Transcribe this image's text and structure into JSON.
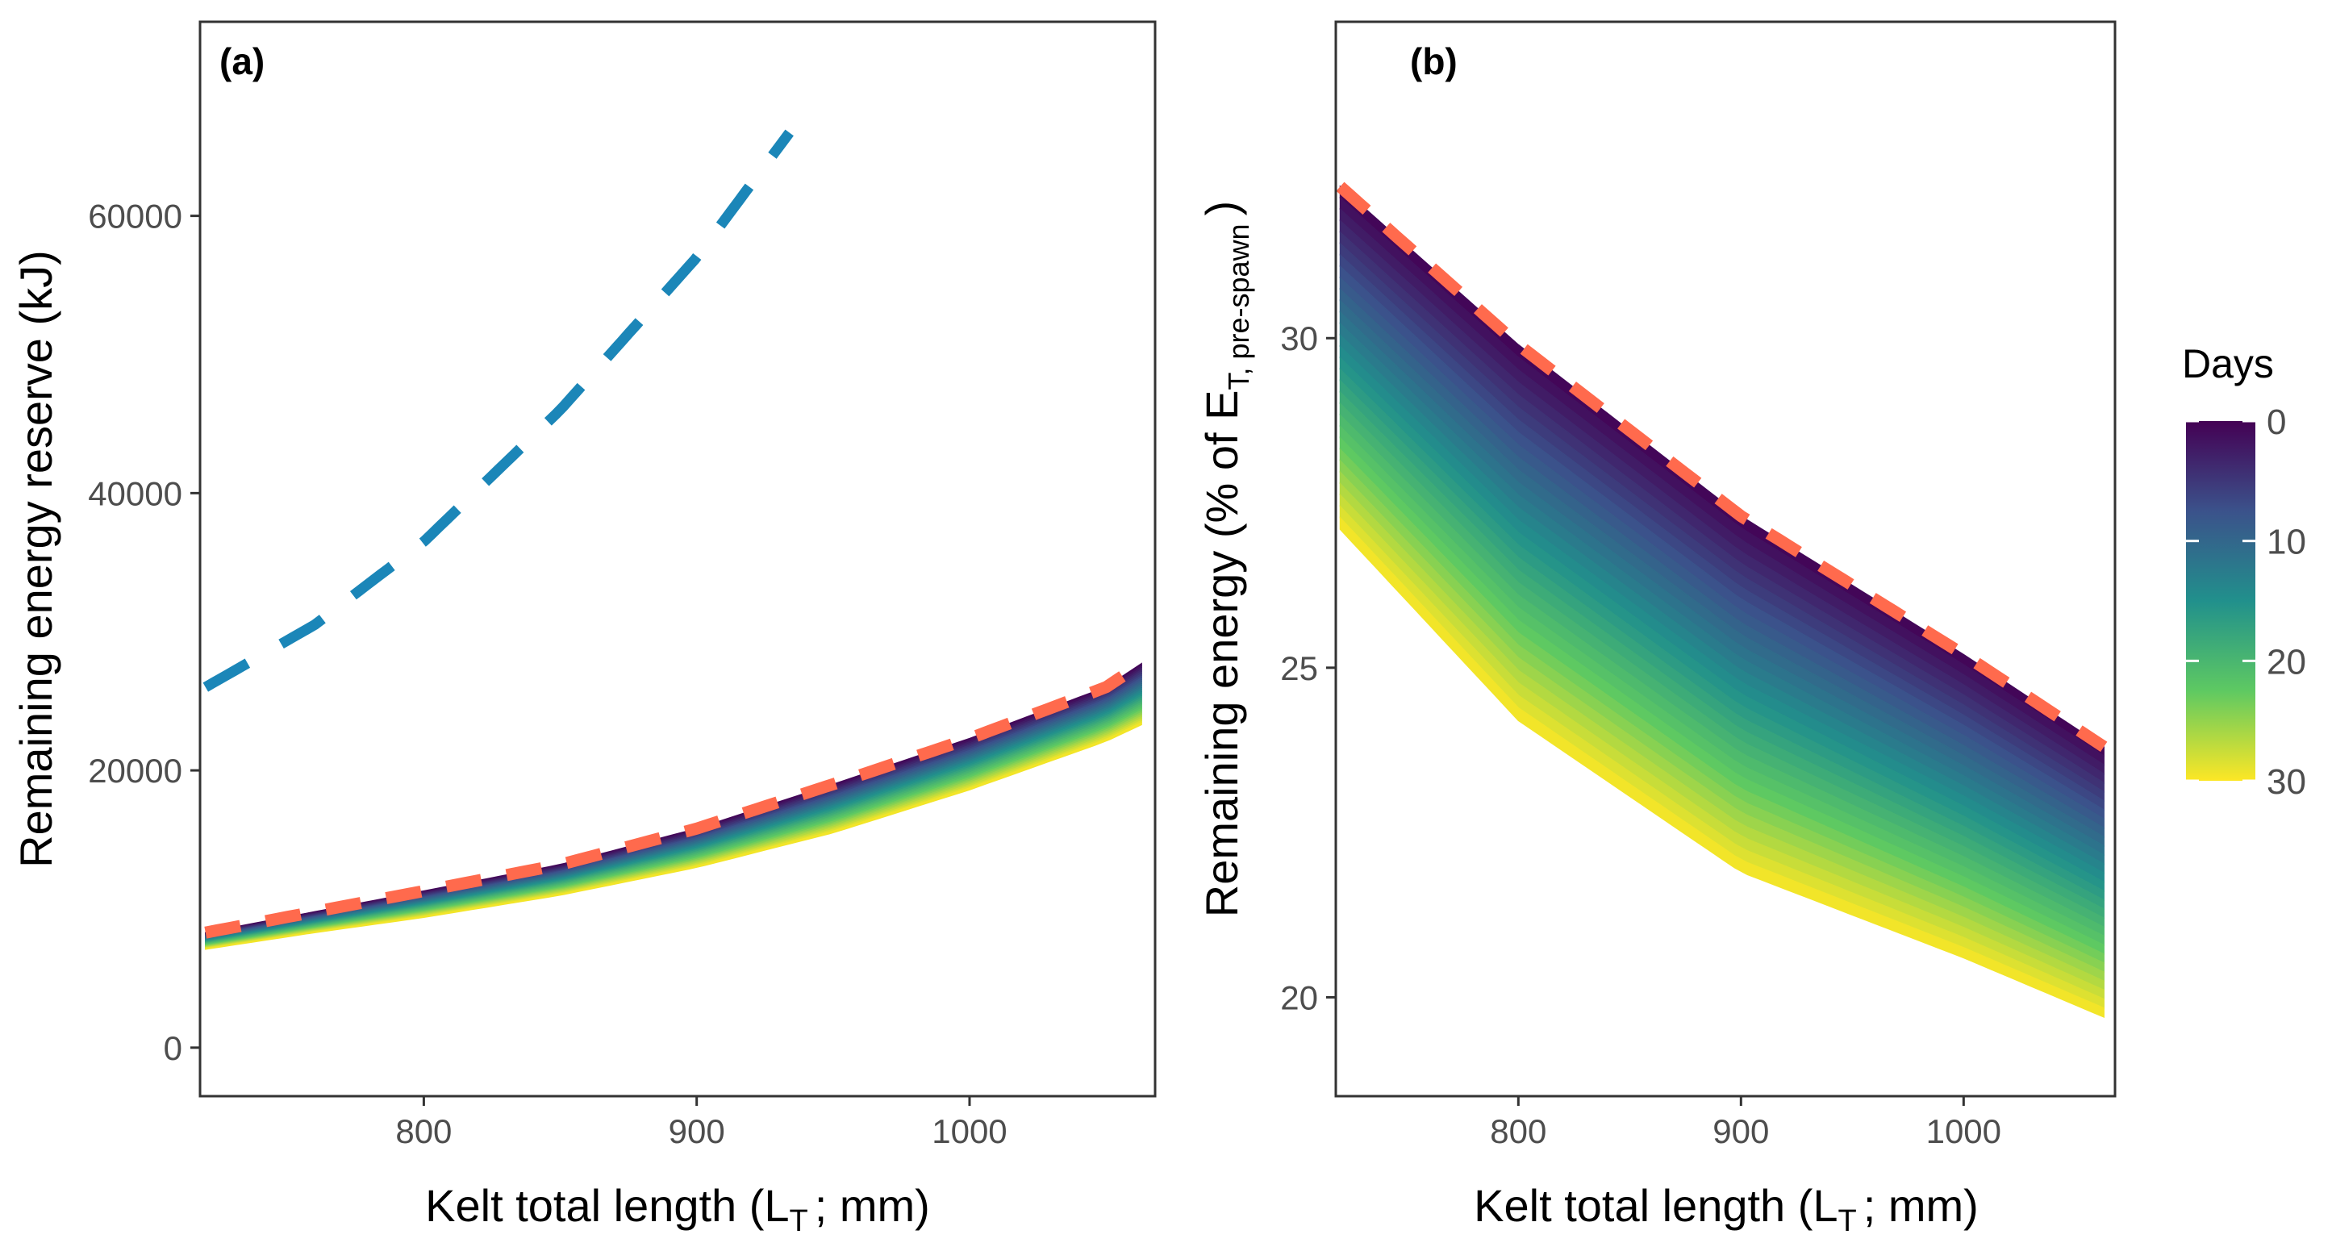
{
  "colors": {
    "dashed_blue": "#1b86b8",
    "dashed_red": "#ff6a4d",
    "panel_border": "#333333",
    "viridis": [
      "#440154",
      "#3b528b",
      "#21908c",
      "#5ec962",
      "#fde725"
    ]
  },
  "chart_data": [
    {
      "type": "area",
      "panel": "(a)",
      "xlabel": "Kelt total length (L",
      "xlabel_sub": "T",
      "xlabel_tail": "; mm)",
      "ylabel": "Remaining energy reserve (kJ)",
      "xlim": [
        718,
        1068
      ],
      "ylim": [
        -3500,
        74000
      ],
      "x_ticks": [
        800,
        900,
        1000
      ],
      "x_tick_labels": [
        "800",
        "900",
        "1000"
      ],
      "y_ticks": [
        0,
        20000,
        40000,
        60000
      ],
      "y_tick_labels": [
        "0",
        "20000",
        "40000",
        "60000"
      ],
      "series": [
        {
          "name": "blue dashed",
          "x": [
            720,
            760,
            800,
            850,
            900,
            934
          ],
          "y": [
            26000,
            30500,
            36500,
            46000,
            57000,
            66000
          ]
        },
        {
          "name": "day 0 (red dashed)",
          "x": [
            720,
            760,
            800,
            850,
            900,
            950,
            1000,
            1050,
            1063
          ],
          "y": [
            8300,
            9800,
            11300,
            13200,
            15800,
            19000,
            22300,
            26000,
            27700
          ]
        },
        {
          "name": "day 30",
          "x": [
            720,
            760,
            800,
            850,
            900,
            950,
            1000,
            1050,
            1063
          ],
          "y": [
            7100,
            8300,
            9400,
            11000,
            13000,
            15500,
            18600,
            22100,
            23300
          ]
        }
      ]
    },
    {
      "type": "heatmap",
      "panel": "(b)",
      "xlabel": "Kelt total length (L",
      "xlabel_sub": "T",
      "xlabel_tail": "; mm)",
      "ylabel": "Remaining energy (% of E",
      "ylabel_sub": "T, pre-spawn",
      "ylabel_tail": ")",
      "xlim": [
        718,
        1068
      ],
      "ylim": [
        18.5,
        34.8
      ],
      "x_ticks": [
        800,
        900,
        1000
      ],
      "x_tick_labels": [
        "800",
        "900",
        "1000"
      ],
      "y_ticks": [
        20,
        25,
        30
      ],
      "y_tick_labels": [
        "20",
        "25",
        "30"
      ],
      "series": [
        {
          "name": "day 0 (red dashed)",
          "x": [
            720,
            800,
            900,
            1000,
            1063
          ],
          "y": [
            32.3,
            29.9,
            27.3,
            25.2,
            23.8
          ]
        },
        {
          "name": "day 30",
          "x": [
            720,
            800,
            900,
            1000,
            1063
          ],
          "y": [
            27.1,
            24.2,
            21.9,
            20.6,
            19.7
          ]
        }
      ],
      "legend": {
        "title": "Days",
        "ticks": [
          0,
          10,
          20,
          30
        ],
        "tick_labels": [
          "0",
          "10",
          "20",
          "30"
        ],
        "position": "right"
      }
    }
  ]
}
